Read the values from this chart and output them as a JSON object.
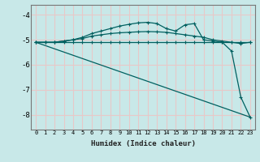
{
  "xlabel": "Humidex (Indice chaleur)",
  "bg_color": "#c8e8e8",
  "grid_color": "#e8c8c8",
  "line_color": "#006060",
  "xlim": [
    -0.5,
    23.5
  ],
  "ylim": [
    -8.6,
    -3.6
  ],
  "yticks": [
    -8,
    -7,
    -6,
    -5,
    -4
  ],
  "xticks": [
    0,
    1,
    2,
    3,
    4,
    5,
    6,
    7,
    8,
    9,
    10,
    11,
    12,
    13,
    14,
    15,
    16,
    17,
    18,
    19,
    20,
    21,
    22,
    23
  ],
  "curve1_x": [
    0,
    1,
    2,
    3,
    4,
    5,
    6,
    7,
    8,
    9,
    10,
    11,
    12,
    13,
    14,
    15,
    16,
    17,
    18,
    19,
    20,
    21,
    22,
    23
  ],
  "curve1_y": [
    -5.1,
    -5.1,
    -5.1,
    -5.1,
    -5.1,
    -5.1,
    -5.1,
    -5.1,
    -5.1,
    -5.1,
    -5.1,
    -5.1,
    -5.1,
    -5.1,
    -5.1,
    -5.1,
    -5.1,
    -5.1,
    -5.1,
    -5.1,
    -5.1,
    -5.1,
    -5.1,
    -5.1
  ],
  "curve2_x": [
    0,
    1,
    2,
    3,
    4,
    5,
    6,
    7,
    8,
    9,
    10,
    11,
    12,
    13,
    14,
    15,
    16,
    17,
    18,
    19,
    20,
    21,
    22,
    23
  ],
  "curve2_y": [
    -5.1,
    -5.1,
    -5.1,
    -5.05,
    -5.0,
    -4.95,
    -4.85,
    -4.8,
    -4.75,
    -4.72,
    -4.7,
    -4.68,
    -4.67,
    -4.68,
    -4.7,
    -4.75,
    -4.8,
    -4.85,
    -4.9,
    -5.0,
    -5.05,
    -5.1,
    -5.15,
    -5.1
  ],
  "curve3_x": [
    0,
    23
  ],
  "curve3_y": [
    -5.1,
    -8.1
  ],
  "curve4_x": [
    0,
    1,
    2,
    3,
    4,
    5,
    6,
    7,
    8,
    9,
    10,
    11,
    12,
    13,
    14,
    15,
    16,
    17,
    18,
    19,
    20,
    21,
    22,
    23
  ],
  "curve4_y": [
    -5.1,
    -5.1,
    -5.1,
    -5.05,
    -5.0,
    -4.9,
    -4.75,
    -4.65,
    -4.55,
    -4.45,
    -4.38,
    -4.32,
    -4.3,
    -4.35,
    -4.55,
    -4.65,
    -4.4,
    -4.35,
    -5.0,
    -5.05,
    -5.1,
    -5.45,
    -7.3,
    -8.1
  ]
}
